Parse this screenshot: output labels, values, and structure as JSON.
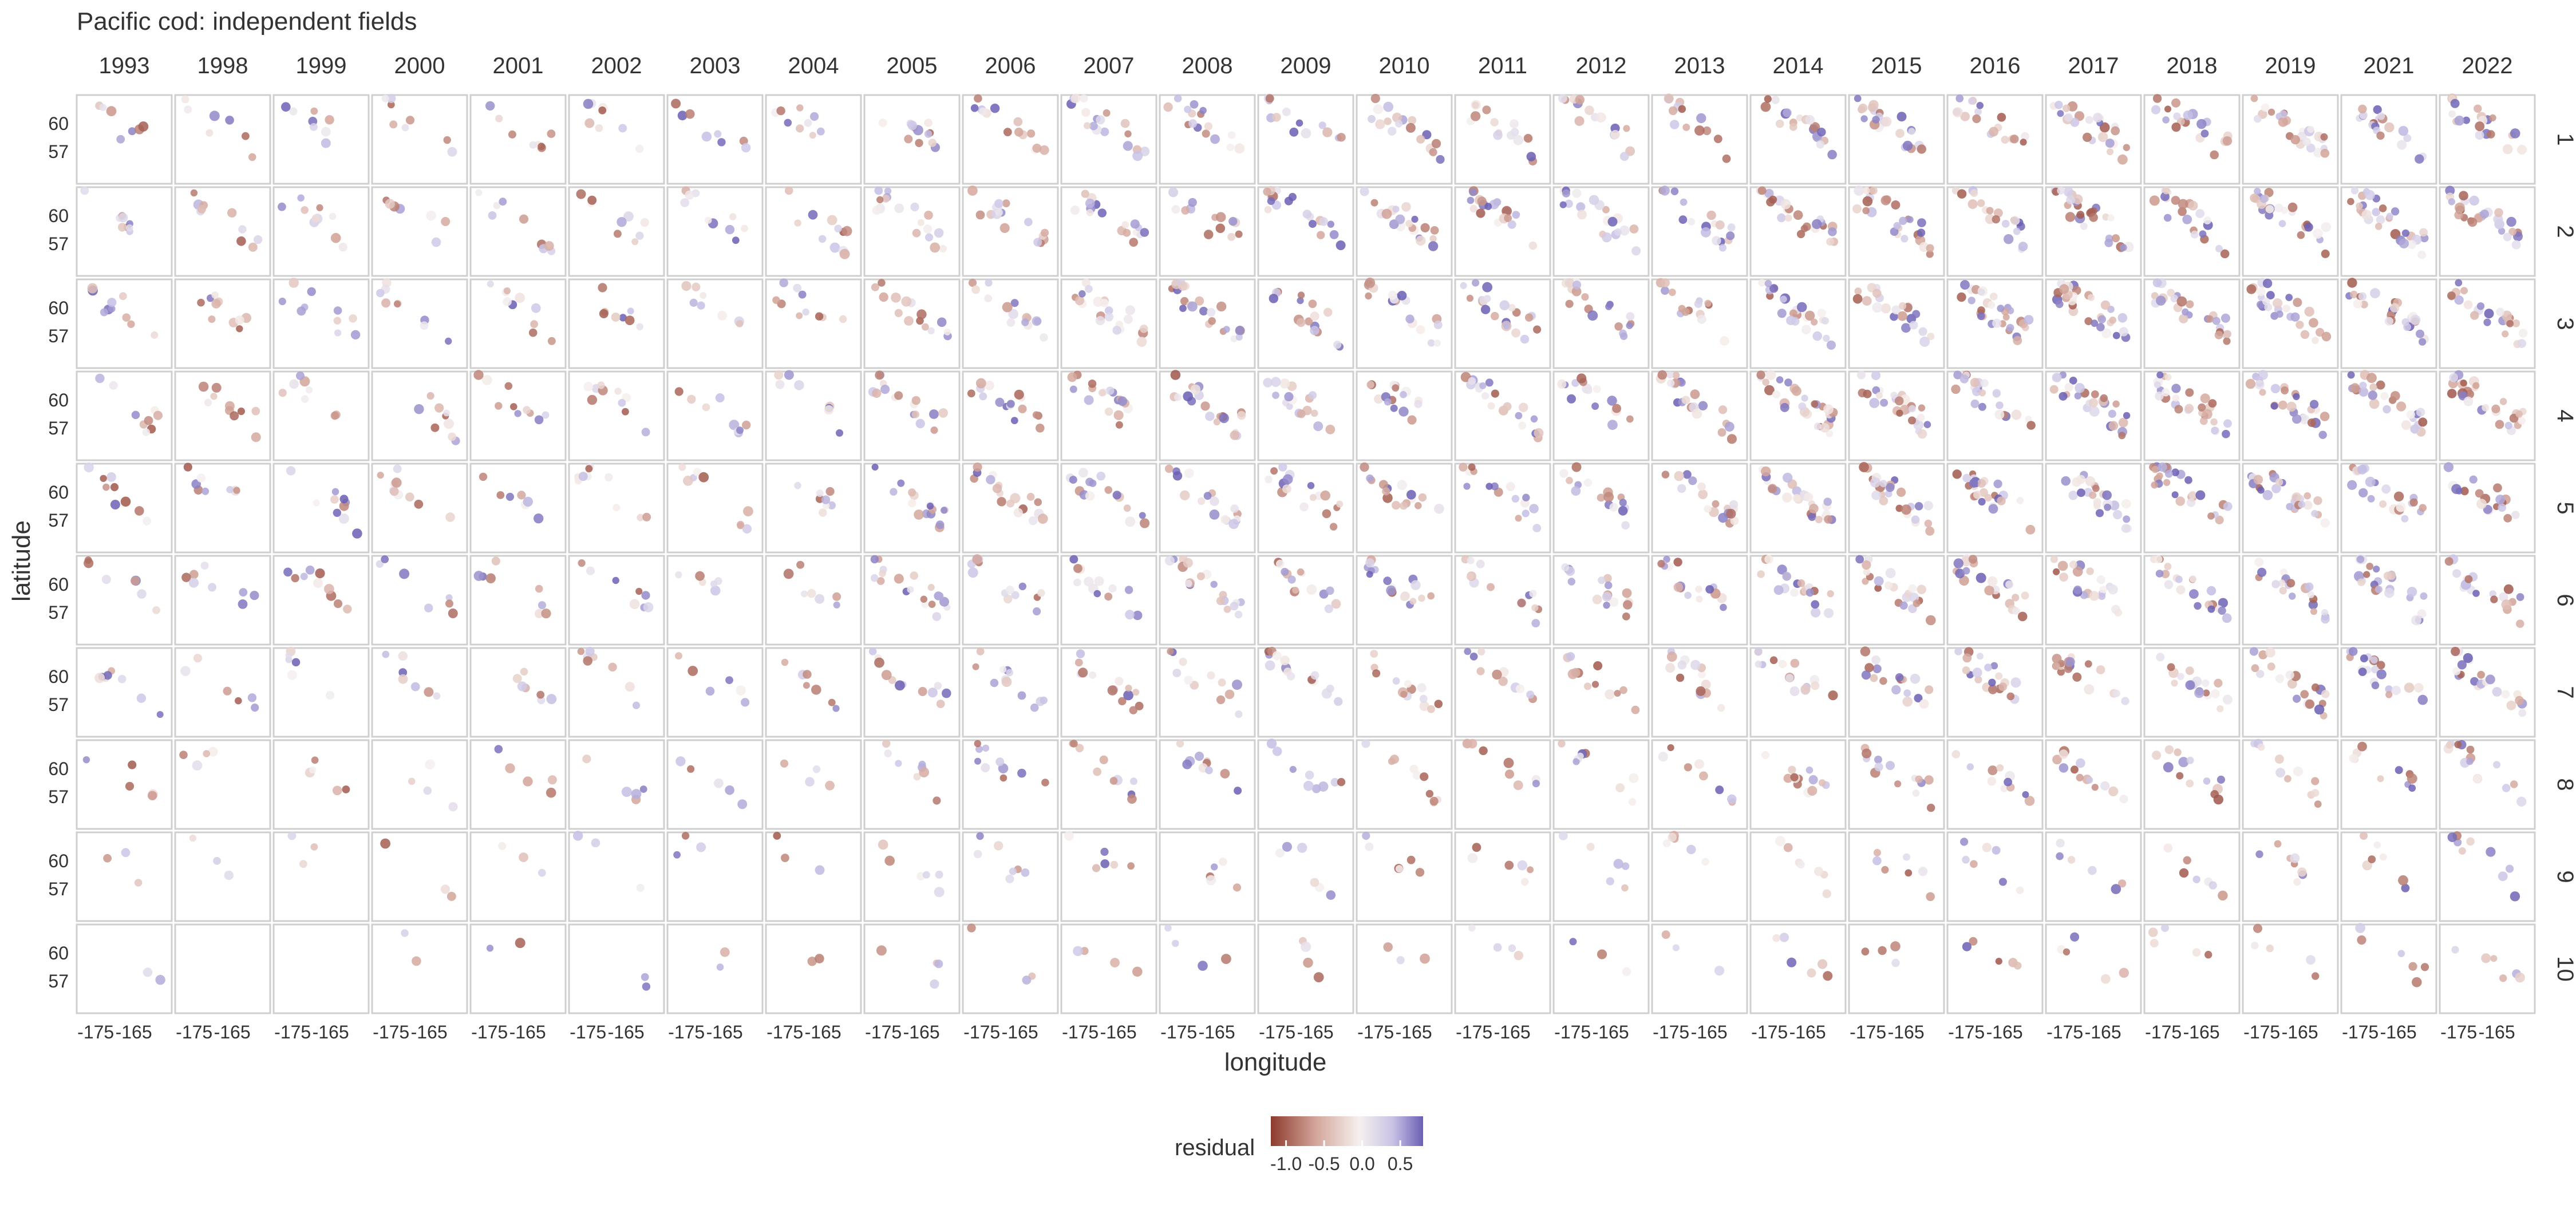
{
  "chart_data": {
    "type": "scatter",
    "title": "Pacific cod: independent fields",
    "xlabel": "longitude",
    "ylabel": "latitude",
    "facet_columns": [
      "1993",
      "1998",
      "1999",
      "2000",
      "2001",
      "2002",
      "2003",
      "2004",
      "2005",
      "2006",
      "2007",
      "2008",
      "2009",
      "2010",
      "2011",
      "2012",
      "2013",
      "2014",
      "2015",
      "2016",
      "2017",
      "2018",
      "2019",
      "2021",
      "2022"
    ],
    "facet_rows": [
      "1",
      "2",
      "3",
      "4",
      "5",
      "6",
      "7",
      "8",
      "9",
      "10"
    ],
    "xlim": [
      -180,
      -155
    ],
    "ylim": [
      53.5,
      63
    ],
    "xticks": [
      -175,
      -165
    ],
    "xtick_labels": [
      "-175",
      "-165"
    ],
    "yticks": [
      60,
      57
    ],
    "ytick_labels": [
      "60",
      "57"
    ],
    "grid": false,
    "legend": {
      "title": "residual",
      "placement": "bottom",
      "range": [
        -1.2,
        0.8
      ],
      "ticks": [
        -1.0,
        -0.5,
        0.0,
        0.5
      ],
      "tick_labels": [
        "-1.0",
        "-0.5",
        "0.0",
        "0.5"
      ]
    },
    "colors": {
      "negative": "#8e3b2e",
      "mid_neg": "#d4a79c",
      "zero": "#f6f0ee",
      "mid_pos": "#c9c3e6",
      "positive": "#6a5fb4",
      "panel_border": "#cfcfcf",
      "text": "#333333"
    },
    "points_density_note": "",
    "residual_scatter": true
  }
}
